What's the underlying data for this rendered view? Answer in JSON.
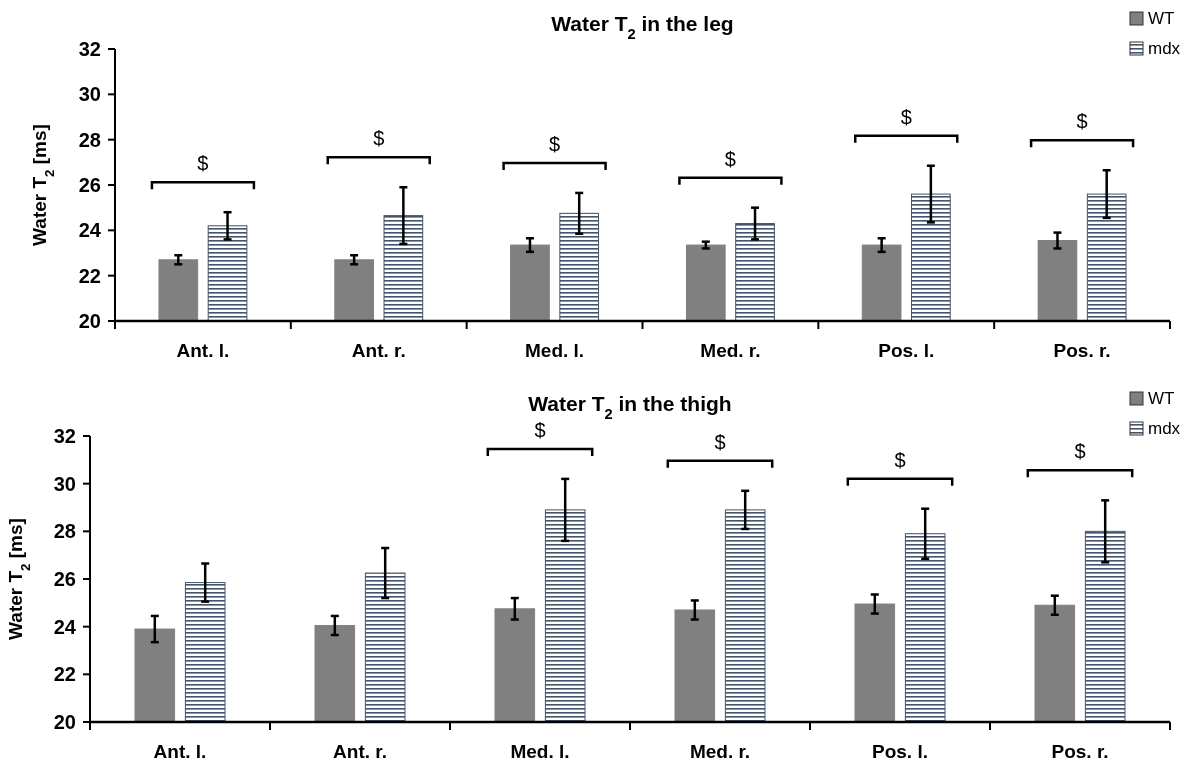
{
  "chart_data": [
    {
      "type": "bar",
      "title": "Water T$_{2}$ in the leg",
      "ylabel": "Water T$_{2}$ [ms]",
      "categories": [
        "Ant. l.",
        "Ant. r.",
        "Med. l.",
        "Med. r.",
        "Pos. l.",
        "Pos. r."
      ],
      "series": [
        {
          "name": "WT",
          "color": "#808080",
          "values": [
            22.7,
            22.7,
            23.35,
            23.35,
            23.35,
            23.55
          ],
          "errors": [
            0.2,
            0.2,
            0.3,
            0.15,
            0.3,
            0.35
          ]
        },
        {
          "name": "mdx",
          "color": "#44546a",
          "values": [
            24.2,
            24.65,
            24.75,
            24.3,
            25.6,
            25.6
          ],
          "errors": [
            0.6,
            1.25,
            0.9,
            0.7,
            1.25,
            1.05
          ]
        }
      ],
      "ylim": [
        20,
        32
      ],
      "yticks": [
        20,
        22,
        24,
        26,
        28,
        30,
        32
      ],
      "legend": "top right",
      "grid": false,
      "annotations": [
        "$",
        "$",
        "$",
        "$",
        "$",
        "$"
      ]
    },
    {
      "type": "bar",
      "title": "Water T$_{2}$ in the thigh",
      "ylabel": "Water T$_{2}$ [ms]",
      "categories": [
        "Ant. l.",
        "Ant. r.",
        "Med. l.",
        "Med. r.",
        "Pos. l.",
        "Pos. r."
      ],
      "series": [
        {
          "name": "WT",
          "color": "#808080",
          "values": [
            23.9,
            24.05,
            24.75,
            24.7,
            24.95,
            24.9
          ],
          "errors": [
            0.55,
            0.4,
            0.45,
            0.4,
            0.4,
            0.4
          ]
        },
        {
          "name": "mdx",
          "color": "#44546a",
          "values": [
            25.85,
            26.25,
            28.9,
            28.9,
            27.9,
            28.0
          ],
          "errors": [
            0.8,
            1.05,
            1.3,
            0.8,
            1.05,
            1.3
          ]
        }
      ],
      "ylim": [
        20,
        32
      ],
      "yticks": [
        20,
        22,
        24,
        26,
        28,
        30,
        32
      ],
      "legend": "top right",
      "grid": false,
      "annotations": [
        "$",
        "$",
        "$",
        "$"
      ]
    }
  ]
}
